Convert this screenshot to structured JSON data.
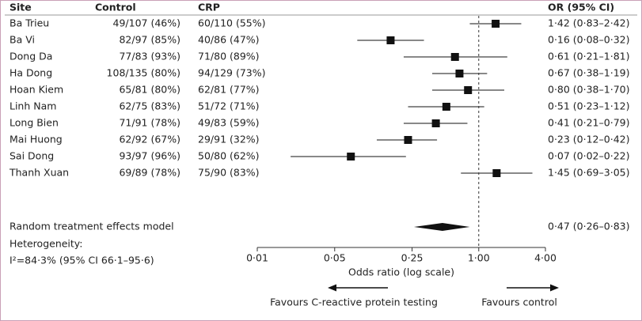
{
  "chart_data": {
    "type": "forest",
    "columns": [
      "Site",
      "Control",
      "CRP",
      "OR (95% CI)"
    ],
    "rows": [
      {
        "site": "Ba Trieu",
        "control": "49/107 (46%)",
        "crp": "60/110 (55%)",
        "or_label": "1·42 (0·83–2·42)",
        "or": 1.42,
        "lo": 0.83,
        "hi": 2.42
      },
      {
        "site": "Ba Vi",
        "control": "82/97 (85%)",
        "crp": "40/86 (47%)",
        "or_label": "0·16 (0·08–0·32)",
        "or": 0.16,
        "lo": 0.08,
        "hi": 0.32
      },
      {
        "site": "Dong Da",
        "control": "77/83 (93%)",
        "crp": "71/80 (89%)",
        "or_label": "0·61 (0·21–1·81)",
        "or": 0.61,
        "lo": 0.21,
        "hi": 1.81
      },
      {
        "site": "Ha Dong",
        "control": "108/135 (80%)",
        "crp": "94/129 (73%)",
        "or_label": "0·67 (0·38–1·19)",
        "or": 0.67,
        "lo": 0.38,
        "hi": 1.19
      },
      {
        "site": "Hoan Kiem",
        "control": "65/81 (80%)",
        "crp": "62/81 (77%)",
        "or_label": "0·80 (0·38–1·70)",
        "or": 0.8,
        "lo": 0.38,
        "hi": 1.7
      },
      {
        "site": "Linh Nam",
        "control": "62/75 (83%)",
        "crp": "51/72 (71%)",
        "or_label": "0·51 (0·23–1·12)",
        "or": 0.51,
        "lo": 0.23,
        "hi": 1.12
      },
      {
        "site": "Long Bien",
        "control": "71/91 (78%)",
        "crp": "49/83 (59%)",
        "or_label": "0·41 (0·21–0·79)",
        "or": 0.41,
        "lo": 0.21,
        "hi": 0.79
      },
      {
        "site": "Mai Huong",
        "control": "62/92 (67%)",
        "crp": "29/91 (32%)",
        "or_label": "0·23 (0·12–0·42)",
        "or": 0.23,
        "lo": 0.12,
        "hi": 0.42
      },
      {
        "site": "Sai Dong",
        "control": "93/97 (96%)",
        "crp": "50/80 (62%)",
        "or_label": "0·07 (0·02–0·22)",
        "or": 0.07,
        "lo": 0.02,
        "hi": 0.22
      },
      {
        "site": "Thanh Xuan",
        "control": "69/89 (78%)",
        "crp": "75/90 (83%)",
        "or_label": "1·45 (0·69–3·05)",
        "or": 1.45,
        "lo": 0.69,
        "hi": 3.05
      }
    ],
    "summary": {
      "label": "Random treatment effects model",
      "or_label": "0·47 (0·26–0·83)",
      "or": 0.47,
      "lo": 0.26,
      "hi": 0.83
    },
    "heterogeneity": [
      "Heterogeneity:",
      "I²=84·3% (95% CI 66·1–95·6)"
    ],
    "xlabel": "Odds ratio (log scale)",
    "xlog": true,
    "xlim": [
      0.01,
      4
    ],
    "xticks": [
      {
        "value": 0.01,
        "label": "0·01"
      },
      {
        "value": 0.05,
        "label": "0·05"
      },
      {
        "value": 0.25,
        "label": "0·25"
      },
      {
        "value": 1,
        "label": "1·00"
      },
      {
        "value": 4,
        "label": "4·00"
      }
    ],
    "reference_line": 1,
    "annotations": [
      "Favours C-reactive protein testing",
      "Favours control"
    ],
    "color": "#111111",
    "border_color": "#c9a0b7"
  }
}
